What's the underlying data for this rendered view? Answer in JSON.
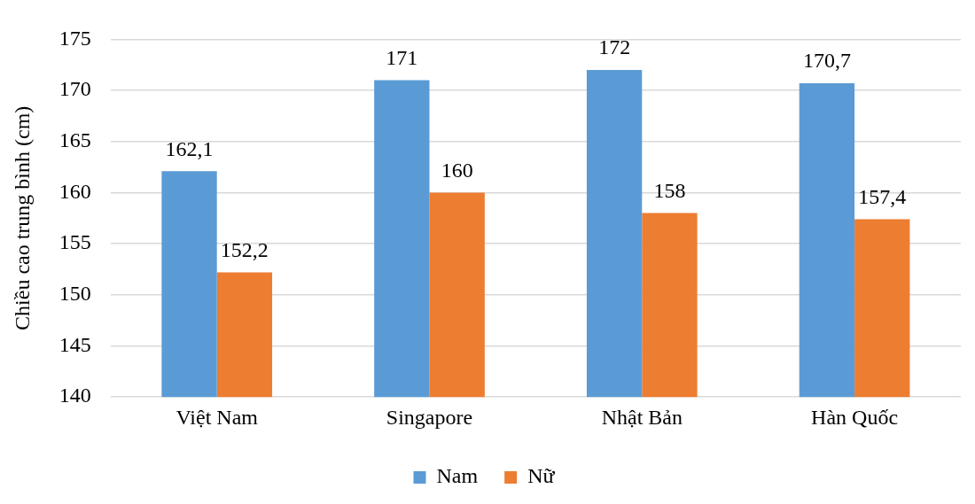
{
  "chart_data": {
    "type": "bar",
    "ylabel": "Chiều cao trung bình (cm)",
    "categories": [
      "Việt Nam",
      "Singapore",
      "Nhật Bản",
      "Hàn Quốc"
    ],
    "series": [
      {
        "name": "Nam",
        "color": "#5b9bd5",
        "values": [
          162.1,
          171,
          172,
          170.7
        ],
        "value_labels": [
          "162,1",
          "171",
          "172",
          "170,7"
        ]
      },
      {
        "name": "Nữ",
        "color": "#ed7d31",
        "values": [
          152.2,
          160,
          158,
          157.4
        ],
        "value_labels": [
          "152,2",
          "160",
          "158",
          "157,4"
        ]
      }
    ],
    "ylim": [
      140,
      175
    ],
    "yticks": [
      140,
      145,
      150,
      155,
      160,
      165,
      170,
      175
    ],
    "grid": "y",
    "legend": "bottom"
  }
}
